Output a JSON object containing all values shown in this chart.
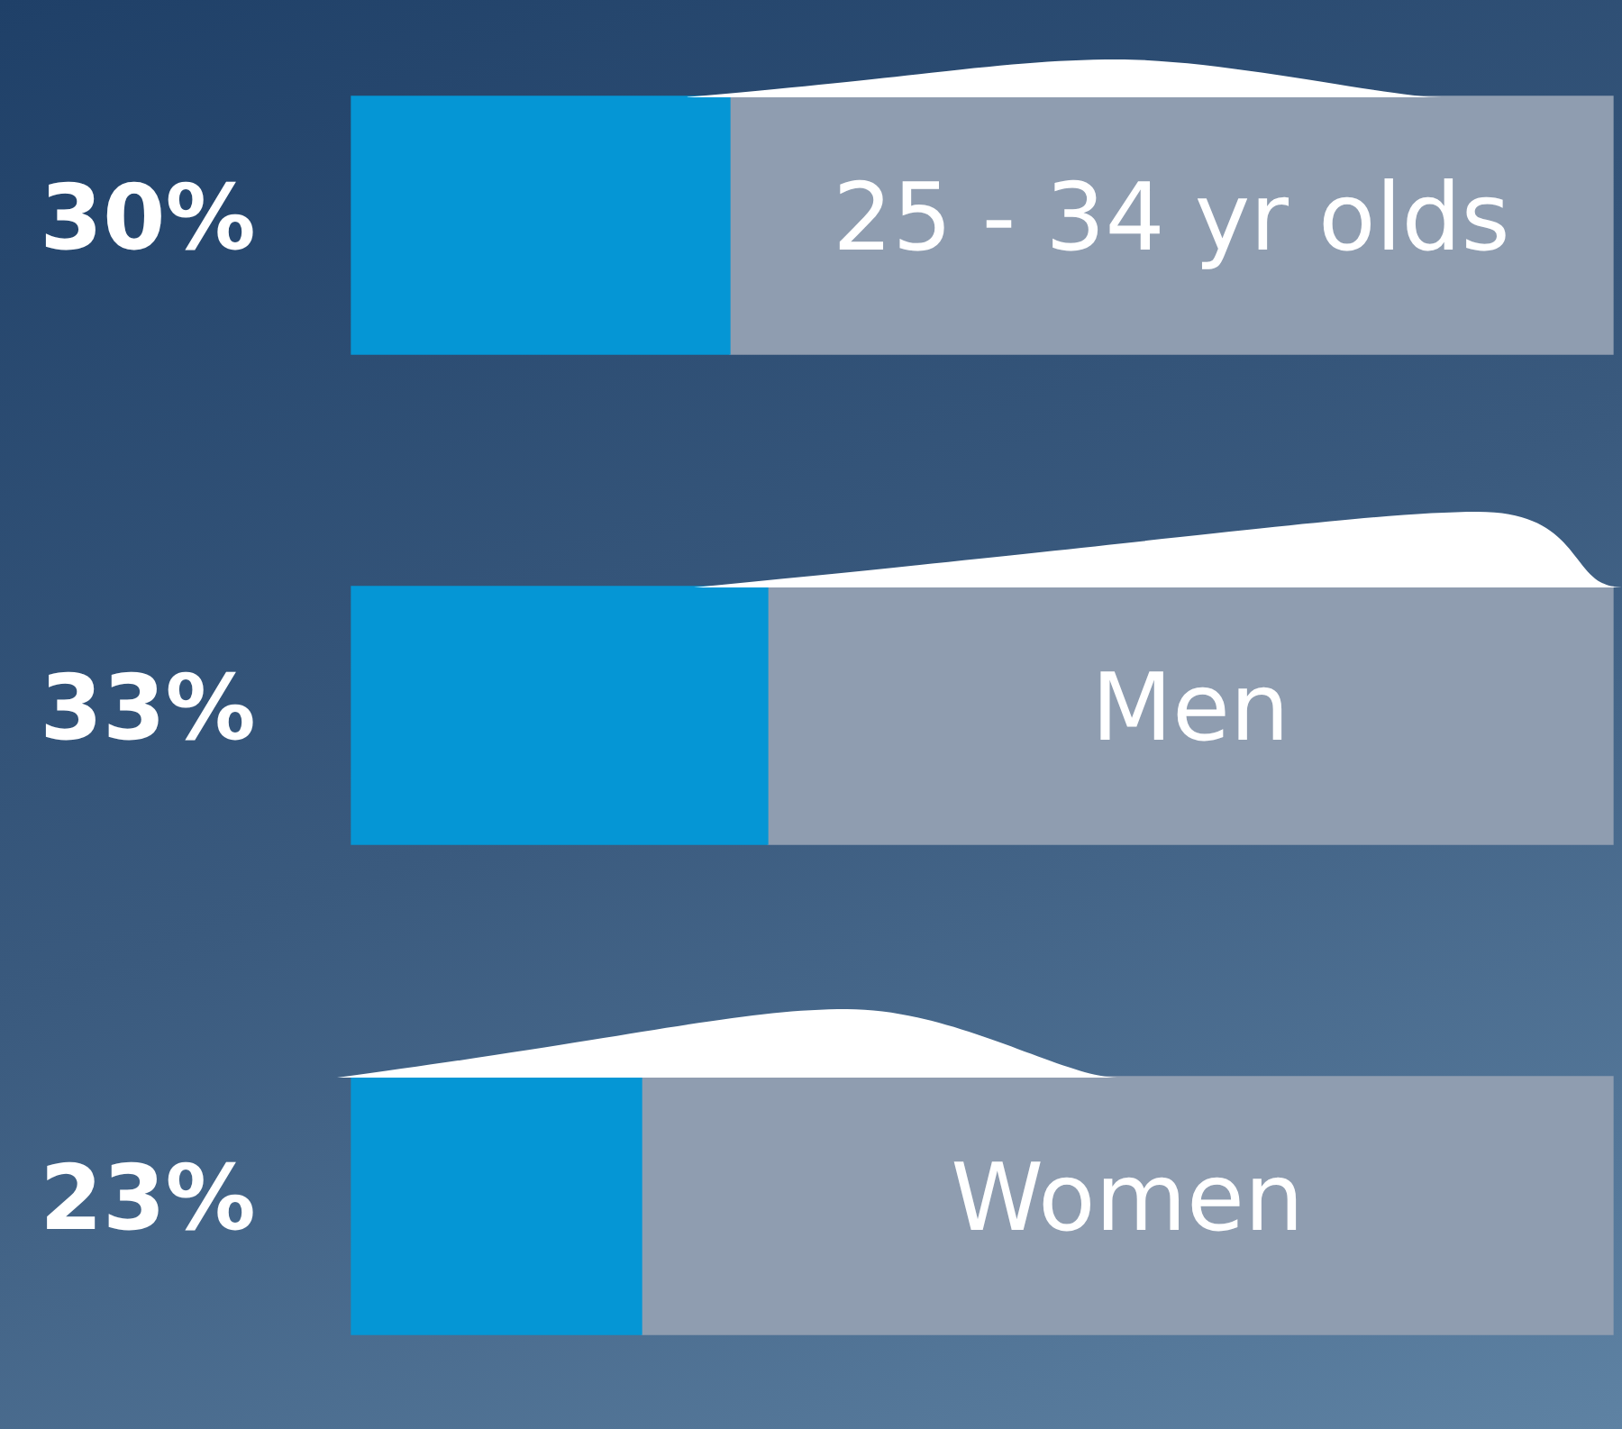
{
  "chart_data": {
    "type": "bar",
    "orientation": "horizontal",
    "stacked": true,
    "categories": [
      "25 - 34 yr olds",
      "Men",
      "Women"
    ],
    "series": [
      {
        "color": "#0596d5",
        "values": [
          30,
          33,
          23
        ],
        "value_labels": [
          "30%",
          "33%",
          "23%"
        ]
      },
      {
        "color": "#8f9db0",
        "values": [
          70,
          67,
          77
        ]
      }
    ],
    "xlim": [
      0,
      100
    ],
    "tick_labels": false,
    "grid": false,
    "legend": false
  }
}
